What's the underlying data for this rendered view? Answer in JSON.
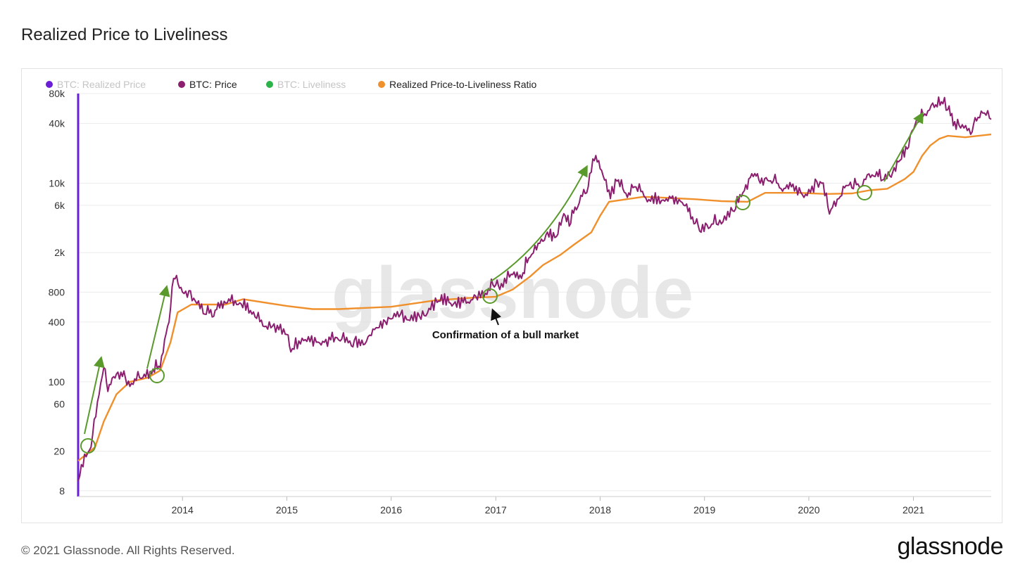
{
  "title": "Realized Price to Liveliness",
  "footer": {
    "copyright": "© 2021 Glassnode. All Rights Reserved.",
    "brand": "glassnode"
  },
  "watermark": "glassnode",
  "colors": {
    "realized_price": "#6a1fd6",
    "price": "#8b1e6e",
    "liveliness": "#2bb34a",
    "ratio": "#f0902c",
    "annotation": "#5a9a2c"
  },
  "chart_data": {
    "type": "line",
    "title": "Realized Price to Liveliness",
    "yscale": "log",
    "ylim": [
      7,
      80000
    ],
    "xlim": [
      "2013-01-01",
      "2021-09-30"
    ],
    "x_ticks": [
      "2014",
      "2015",
      "2016",
      "2017",
      "2018",
      "2019",
      "2020",
      "2021"
    ],
    "y_ticks": [
      {
        "value": 80000,
        "label": "80k"
      },
      {
        "value": 40000,
        "label": "40k"
      },
      {
        "value": 10000,
        "label": "10k"
      },
      {
        "value": 6000,
        "label": "6k"
      },
      {
        "value": 2000,
        "label": "2k"
      },
      {
        "value": 800,
        "label": "800"
      },
      {
        "value": 400,
        "label": "400"
      },
      {
        "value": 100,
        "label": "100"
      },
      {
        "value": 60,
        "label": "60"
      },
      {
        "value": 20,
        "label": "20"
      },
      {
        "value": 8,
        "label": "8"
      }
    ],
    "grid": true,
    "legend_position": "top-left",
    "legend": [
      {
        "name": "BTC: Realized Price",
        "color": "#6a1fd6",
        "hidden": true
      },
      {
        "name": "BTC: Price",
        "color": "#8b1e6e",
        "hidden": false
      },
      {
        "name": "BTC: Liveliness",
        "color": "#2bb34a",
        "hidden": true
      },
      {
        "name": "Realized Price-to-Liveliness Ratio",
        "color": "#f0902c",
        "hidden": false
      }
    ],
    "series": [
      {
        "name": "BTC: Price",
        "x": [
          "2013-01-01",
          "2013-02-15",
          "2013-04-01",
          "2013-04-15",
          "2013-05-15",
          "2013-07-01",
          "2013-08-15",
          "2013-09-15",
          "2013-10-15",
          "2013-11-15",
          "2013-12-01",
          "2014-01-01",
          "2014-02-15",
          "2014-03-20",
          "2014-04-15",
          "2014-06-01",
          "2014-07-15",
          "2014-09-01",
          "2014-10-15",
          "2015-01-01",
          "2015-01-15",
          "2015-03-01",
          "2015-05-01",
          "2015-07-01",
          "2015-08-15",
          "2015-10-01",
          "2015-11-15",
          "2016-01-01",
          "2016-03-01",
          "2016-05-01",
          "2016-06-15",
          "2016-08-01",
          "2016-10-01",
          "2016-12-01",
          "2017-01-01",
          "2017-01-15",
          "2017-03-01",
          "2017-04-01",
          "2017-05-01",
          "2017-06-15",
          "2017-08-01",
          "2017-09-01",
          "2017-09-15",
          "2017-10-15",
          "2017-11-15",
          "2017-12-17",
          "2018-01-01",
          "2018-02-06",
          "2018-03-01",
          "2018-04-06",
          "2018-05-01",
          "2018-06-15",
          "2018-08-15",
          "2018-10-15",
          "2018-11-25",
          "2018-12-15",
          "2019-01-15",
          "2019-03-01",
          "2019-04-15",
          "2019-05-15",
          "2019-06-26",
          "2019-07-15",
          "2019-08-15",
          "2019-10-01",
          "2019-11-01",
          "2019-12-15",
          "2020-02-15",
          "2020-03-13",
          "2020-04-15",
          "2020-05-15",
          "2020-07-01",
          "2020-08-15",
          "2020-09-15",
          "2020-10-15",
          "2020-11-15",
          "2020-12-15",
          "2021-01-08",
          "2021-02-15",
          "2021-03-15",
          "2021-04-14",
          "2021-05-01",
          "2021-05-20",
          "2021-06-15",
          "2021-07-20",
          "2021-08-15",
          "2021-09-06",
          "2021-09-30"
        ],
        "values": [
          10,
          22,
          140,
          80,
          120,
          90,
          110,
          120,
          140,
          400,
          1100,
          800,
          650,
          480,
          450,
          620,
          600,
          480,
          360,
          300,
          200,
          260,
          235,
          265,
          230,
          240,
          350,
          430,
          420,
          460,
          650,
          580,
          620,
          760,
          950,
          850,
          1200,
          1100,
          1800,
          2600,
          2900,
          4700,
          3700,
          5800,
          8000,
          19000,
          14000,
          7000,
          10500,
          7200,
          9200,
          6500,
          6600,
          6400,
          3900,
          3300,
          3500,
          3900,
          5200,
          8000,
          12500,
          10000,
          10500,
          8300,
          9200,
          7200,
          10000,
          4900,
          7000,
          9500,
          9200,
          11800,
          10800,
          11500,
          17000,
          23000,
          40000,
          48000,
          58000,
          63000,
          55000,
          38000,
          36000,
          31000,
          46000,
          51000,
          44000
        ]
      },
      {
        "name": "Realized Price-to-Liveliness Ratio",
        "x": [
          "2013-01-01",
          "2013-03-01",
          "2013-04-01",
          "2013-05-15",
          "2013-07-01",
          "2013-09-01",
          "2013-10-15",
          "2013-11-20",
          "2013-12-15",
          "2014-02-01",
          "2014-06-01",
          "2014-08-01",
          "2015-01-01",
          "2015-04-01",
          "2015-07-01",
          "2016-01-01",
          "2016-06-01",
          "2016-10-01",
          "2017-01-01",
          "2017-03-01",
          "2017-05-01",
          "2017-06-15",
          "2017-08-15",
          "2017-10-01",
          "2017-12-01",
          "2018-01-01",
          "2018-02-01",
          "2018-06-01",
          "2018-09-01",
          "2018-12-01",
          "2019-03-01",
          "2019-06-01",
          "2019-08-01",
          "2019-12-01",
          "2020-03-01",
          "2020-06-01",
          "2020-08-01",
          "2020-10-01",
          "2020-12-01",
          "2021-01-01",
          "2021-02-01",
          "2021-03-01",
          "2021-04-01",
          "2021-05-01",
          "2021-07-01",
          "2021-09-30"
        ],
        "values": [
          16,
          22,
          40,
          75,
          100,
          110,
          130,
          250,
          500,
          600,
          600,
          680,
          580,
          540,
          540,
          570,
          660,
          700,
          720,
          850,
          1150,
          1500,
          1900,
          2400,
          3200,
          4700,
          6500,
          7300,
          7100,
          6900,
          6600,
          6500,
          8000,
          8000,
          7800,
          7900,
          8500,
          8800,
          11000,
          13000,
          19000,
          24000,
          28000,
          30000,
          29000,
          31000
        ]
      }
    ],
    "annotations": [
      {
        "text": "Confirmation of a bull market",
        "x": "2017-01-01",
        "y": 340
      }
    ]
  }
}
